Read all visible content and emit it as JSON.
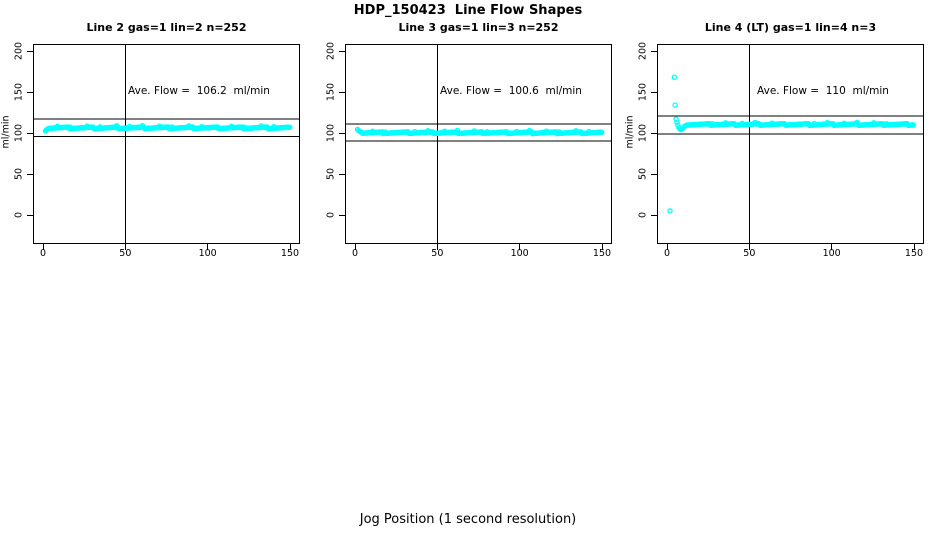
{
  "page": {
    "title": "HDP_150423  Line Flow Shapes",
    "xlabel": "Jog Position (1 second resolution)"
  },
  "style": {
    "point_color": "#00FFFF",
    "line_color": "#000000"
  },
  "chart_data": [
    {
      "type": "scatter",
      "title": "Line 2 gas=1 lin=2 n=252",
      "n": 252,
      "annotation": "Ave. Flow =  106.2  ml/min",
      "ave_flow_ml_min": 106.2,
      "ylabel": "ml/min",
      "xticks": [
        0,
        50,
        100,
        150
      ],
      "yticks": [
        0,
        50,
        100,
        150,
        200
      ],
      "xlim": [
        -6,
        156
      ],
      "ylim": [
        -35,
        208
      ],
      "vline_x": 50,
      "hlines": [
        116.8,
        95.6
      ],
      "start_points": [
        [
          1.6,
          102.6
        ],
        [
          2.2,
          103.8
        ],
        [
          2.8,
          104.8
        ],
        [
          3.4,
          105.5
        ]
      ],
      "band": {
        "x_from": 4.0,
        "x_to": 150,
        "x_step": 0.6,
        "level": 106.3,
        "jitter": 1.0,
        "spike": 1.7
      },
      "outliers": []
    },
    {
      "type": "scatter",
      "title": "Line 3 gas=1 lin=3 n=252",
      "n": 252,
      "annotation": "Ave. Flow =  100.6  ml/min",
      "ave_flow_ml_min": 100.6,
      "ylabel": "",
      "xticks": [
        0,
        50,
        100,
        150
      ],
      "yticks": [
        0,
        50,
        100,
        150,
        200
      ],
      "xlim": [
        -6,
        156
      ],
      "ylim": [
        -35,
        208
      ],
      "vline_x": 50,
      "hlines": [
        110.7,
        90.5
      ],
      "start_points": [
        [
          1.6,
          104.3
        ],
        [
          2.2,
          102.9
        ],
        [
          2.8,
          102.0
        ],
        [
          3.4,
          101.3
        ],
        [
          4.0,
          100.8
        ]
      ],
      "band": {
        "x_from": 4.6,
        "x_to": 150,
        "x_step": 0.6,
        "level": 100.4,
        "jitter": 1.0,
        "spike": 1.7
      },
      "outliers": []
    },
    {
      "type": "scatter",
      "title": "Line 4 (LT) gas=1 lin=4 n=3",
      "n": 3,
      "annotation": "Ave. Flow =  110  ml/min",
      "ave_flow_ml_min": 110,
      "ylabel": "ml/min",
      "xticks": [
        0,
        50,
        100,
        150
      ],
      "yticks": [
        0,
        50,
        100,
        150,
        200
      ],
      "xlim": [
        -6,
        156
      ],
      "ylim": [
        -35,
        208
      ],
      "vline_x": 50,
      "hlines": [
        121.0,
        99.0
      ],
      "start_points": [
        [
          5.5,
          117.0
        ],
        [
          6.1,
          113.0
        ],
        [
          6.7,
          109.5
        ],
        [
          7.3,
          106.5
        ],
        [
          7.9,
          104.8
        ],
        [
          8.5,
          104.2
        ],
        [
          9.1,
          105.0
        ],
        [
          9.7,
          106.2
        ],
        [
          10.3,
          107.4
        ],
        [
          10.9,
          108.4
        ],
        [
          11.5,
          109.2
        ],
        [
          12.1,
          109.8
        ]
      ],
      "band": {
        "x_from": 12.7,
        "x_to": 150,
        "x_step": 0.6,
        "level": 110.4,
        "jitter": 1.0,
        "spike": 1.7
      },
      "outliers": [
        [
          1.8,
          5
        ],
        [
          4.5,
          168
        ],
        [
          4.9,
          134
        ]
      ]
    }
  ]
}
